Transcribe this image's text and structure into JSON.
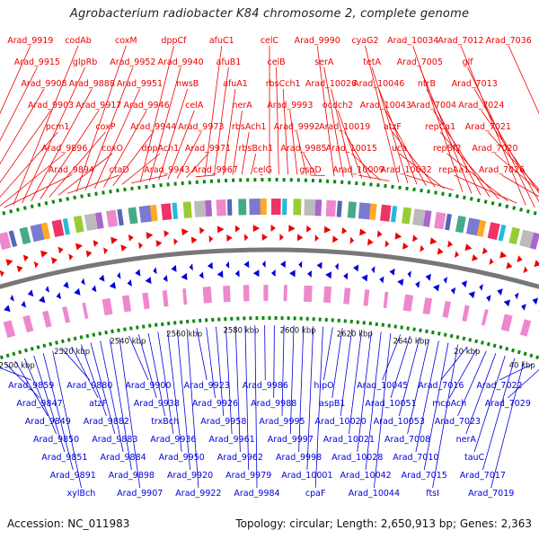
{
  "title": "Agrobacterium radiobacter K84 chromosome 2, complete genome",
  "footer": {
    "accession": "Accession: NC_011983",
    "topology": "Topology: circular; Length: 2,650,913 bp; Genes: 2,363"
  },
  "colors": {
    "forward": "#ee0000",
    "reverse": "#0000dd",
    "backbone": "#777777",
    "ticks": "#118811"
  },
  "scale_labels": [
    "2500 kbp",
    "2520 kbp",
    "2540 kbp",
    "2560 kbp",
    "2580 kbp",
    "2600 kbp",
    "2620 kbp",
    "2640 kbp",
    "20 kbp",
    "40 kbp"
  ],
  "forward_labels": [
    "Arad_9919",
    "Arad_9915",
    "Arad_9908",
    "Arad_9903",
    "pcm1",
    "Arad_9896",
    "Arad_9894",
    "codAb",
    "glpRb",
    "Arad_9888",
    "Arad_9917",
    "coxP",
    "coxO",
    "ctaD",
    "coxM",
    "Arad_9952",
    "Arad_9951",
    "Arad_9946",
    "Arad_9944",
    "dppAch1",
    "Arad_9943",
    "dppCf",
    "Arad_9940",
    "nwsB",
    "celA",
    "Arad_9973",
    "Arad_9971",
    "Arad_9967",
    "afuC1",
    "afuB1",
    "afuA1",
    "nerA",
    "rbsAch1",
    "rbsBch1",
    "celG",
    "celC",
    "celB",
    "rbsCch1",
    "Arad_9993",
    "Arad_9992",
    "Arad_9985",
    "gspD",
    "Arad_9990",
    "serA",
    "Arad_10026",
    "ocdch2",
    "Arad_10019",
    "Arad_10015",
    "Arad_10009",
    "cyaG2",
    "tetA",
    "Arad_10046",
    "Arad_10043",
    "atzF",
    "uca",
    "Arad_10032",
    "Arad_10034",
    "Arad_7005",
    "ntrB",
    "Arad_7004",
    "repCa1",
    "repBf2",
    "repAa1",
    "Arad_7012",
    "glf",
    "Arad_7013",
    "Arad_7024",
    "Arad_7021",
    "Arad_7020",
    "Arad_7026",
    "Arad_7036"
  ],
  "reverse_labels": [
    "Arad_9859",
    "Arad_9847",
    "Arad_9849",
    "Arad_9850",
    "Arad_9851",
    "Arad_9891",
    "xylBch",
    "Arad_9880",
    "atzF",
    "Arad_9882",
    "Arad_9883",
    "Arad_9884",
    "Arad_9898",
    "Arad_9907",
    "Arad_9900",
    "Arad_9938",
    "trxBch",
    "Arad_9936",
    "Arad_9950",
    "Arad_9920",
    "Arad_9922",
    "Arad_9923",
    "Arad_9926",
    "Arad_9958",
    "Arad_9961",
    "Arad_9962",
    "Arad_9979",
    "Arad_9984",
    "Arad_9986",
    "Arad_9988",
    "Arad_9995",
    "Arad_9997",
    "Arad_9998",
    "Arad_10001",
    "cpaF",
    "hipO",
    "aspB1",
    "Arad_10020",
    "Arad_10021",
    "Arad_10028",
    "Arad_10042",
    "Arad_10044",
    "Arad_10045",
    "Arad_10051",
    "Arad_10053",
    "Arad_7008",
    "Arad_7010",
    "Arad_7015",
    "ftsI",
    "Arad_7016",
    "mcpAch",
    "Arad_7023",
    "nerA",
    "tauC",
    "Arad_7017",
    "Arad_7019",
    "Arad_7022",
    "Arad_7029"
  ]
}
